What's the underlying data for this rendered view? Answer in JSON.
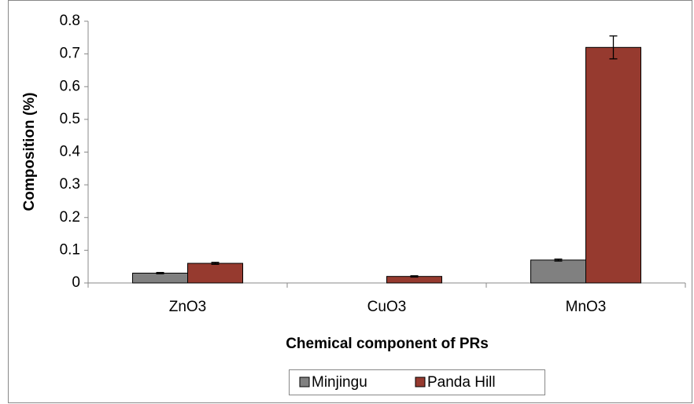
{
  "chart_data": {
    "type": "bar",
    "xlabel": "Chemical component of PRs",
    "ylabel": "Composition (%)",
    "categories": [
      "ZnO3",
      "CuO3",
      "MnO3"
    ],
    "series": [
      {
        "name": "Minjingu",
        "color": "#808080",
        "values": [
          0.03,
          0,
          0.07
        ],
        "errors": [
          0.002,
          0,
          0.003
        ]
      },
      {
        "name": "Panda Hill",
        "color": "#963a2f",
        "values": [
          0.06,
          0.02,
          0.72
        ],
        "errors": [
          0.003,
          0.002,
          0.035
        ]
      }
    ],
    "ylim": [
      0,
      0.8
    ],
    "yticks": [
      0,
      0.1,
      0.2,
      0.3,
      0.4,
      0.5,
      0.6,
      0.7,
      0.8
    ],
    "legend": "bottom"
  }
}
